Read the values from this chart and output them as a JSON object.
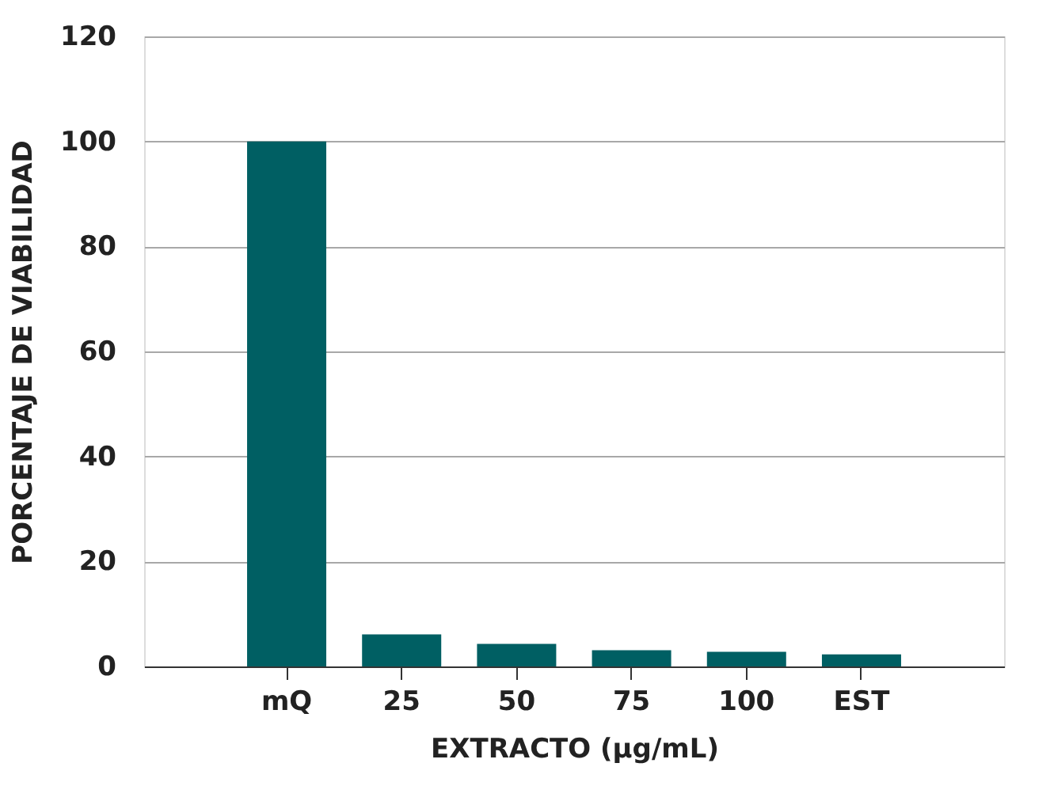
{
  "chart_data": {
    "type": "bar",
    "xlabel": "EXTRACTO (µg/mL)",
    "ylabel": "PORCENTAJE DE VIABILIDAD",
    "categories": [
      "mQ",
      "25",
      "50",
      "75",
      "100",
      "EST"
    ],
    "values": [
      100,
      6.1,
      4.3,
      3.1,
      2.8,
      2.3
    ],
    "color": "#005f63",
    "ylim": [
      0,
      120
    ],
    "yticks": [
      0,
      20,
      40,
      60,
      80,
      100,
      120
    ],
    "grid": "y"
  }
}
